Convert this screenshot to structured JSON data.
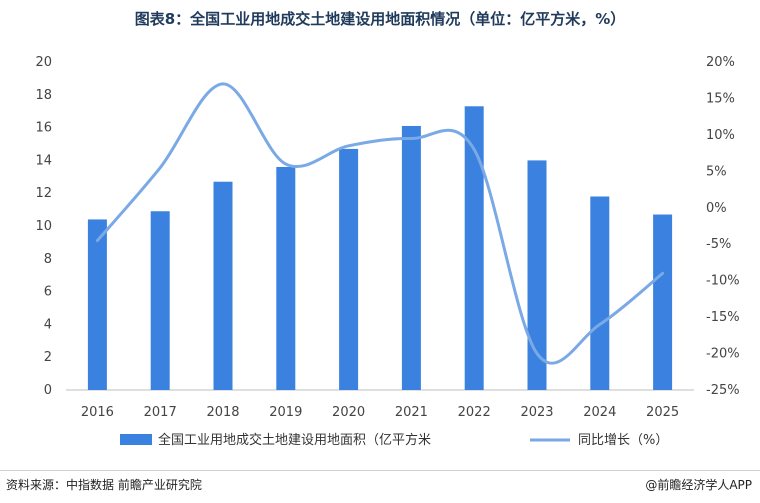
{
  "title": "图表8：全国工业用地成交土地建设用地面积情况（单位：亿平方米，%）",
  "footer": {
    "source": "资料来源：中指数据  前瞻产业研究院",
    "brand": "@前瞻经济学人APP"
  },
  "colors": {
    "bar": "#3b82e0",
    "line": "#7aa9e6"
  },
  "chart_data": {
    "type": "bar",
    "categories": [
      "2016",
      "2017",
      "2018",
      "2019",
      "2020",
      "2021",
      "2022",
      "2023",
      "2024",
      "2025"
    ],
    "series": [
      {
        "name": "全国工业用地成交土地建设用地面积（亿平方米",
        "type": "bar",
        "axis": "left",
        "values": [
          10.4,
          10.9,
          12.7,
          13.6,
          14.7,
          16.1,
          17.3,
          14.0,
          11.8,
          10.7
        ]
      },
      {
        "name": "同比增长（%）",
        "type": "line",
        "axis": "right",
        "values": [
          -4.5,
          5.5,
          17.0,
          6.0,
          8.5,
          9.5,
          8.0,
          -20.0,
          -16.0,
          -9.0
        ]
      }
    ],
    "ylim": [
      0,
      20
    ],
    "y_ticks": [
      "0",
      "2",
      "4",
      "6",
      "8",
      "10",
      "12",
      "14",
      "16",
      "18",
      "20"
    ],
    "y2lim": [
      -25,
      20
    ],
    "y2_ticks": [
      "-25%",
      "-20%",
      "-15%",
      "-10%",
      "-5%",
      "0%",
      "5%",
      "10%",
      "15%",
      "20%"
    ],
    "grid": false,
    "legend": "bottom"
  }
}
